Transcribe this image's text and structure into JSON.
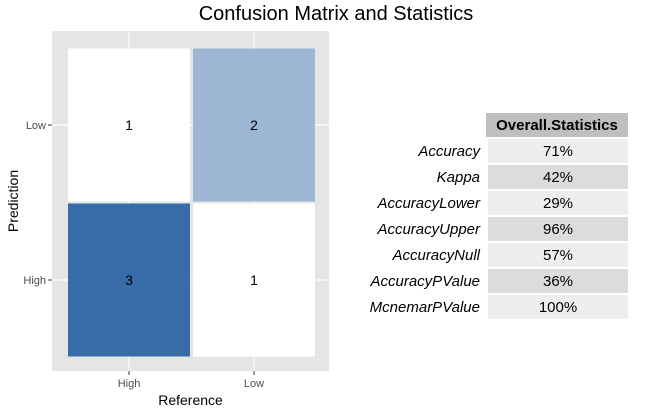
{
  "title": "Confusion Matrix and Statistics",
  "chart_data": [
    {
      "type": "heatmap",
      "xlabel": "Reference",
      "ylabel": "Prediction",
      "x_categories": [
        "High",
        "Low"
      ],
      "y_categories": [
        "High",
        "Low"
      ],
      "cells": [
        {
          "reference": "High",
          "prediction": "Low",
          "value": 1
        },
        {
          "reference": "Low",
          "prediction": "Low",
          "value": 2
        },
        {
          "reference": "High",
          "prediction": "High",
          "value": 3
        },
        {
          "reference": "Low",
          "prediction": "High",
          "value": 1
        }
      ],
      "color_scale": {
        "low": "#ffffff",
        "high": "#386ca8"
      },
      "panel_background": "#e5e5e5",
      "grid": true
    },
    {
      "type": "table",
      "column_header": "Overall.Statistics",
      "rows": [
        {
          "name": "Accuracy",
          "value": "71%"
        },
        {
          "name": "Kappa",
          "value": "42%"
        },
        {
          "name": "AccuracyLower",
          "value": "29%"
        },
        {
          "name": "AccuracyUpper",
          "value": "96%"
        },
        {
          "name": "AccuracyNull",
          "value": "57%"
        },
        {
          "name": "AccuracyPValue",
          "value": "36%"
        },
        {
          "name": "McnemarPValue",
          "value": "100%"
        }
      ]
    }
  ]
}
